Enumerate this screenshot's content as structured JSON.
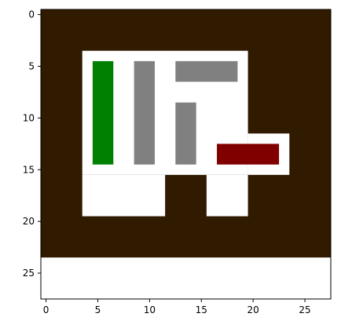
{
  "chart_data": {
    "type": "heatmap",
    "title": "",
    "xlabel": "",
    "ylabel": "",
    "xlim": [
      -0.5,
      27.5
    ],
    "ylim": [
      27.5,
      -0.5
    ],
    "x_ticks": [
      "0",
      "5",
      "10",
      "15",
      "20",
      "25"
    ],
    "y_ticks": [
      "0",
      "5",
      "10",
      "15",
      "20",
      "25"
    ],
    "grid_size": [
      28,
      28
    ],
    "colors": {
      "wall": "#301a00",
      "floor": "#ffffff",
      "void": "#ffffff",
      "green_object": "#008000",
      "gray_object": "#808080",
      "red_object": "#800000"
    },
    "regions": [
      {
        "label": "wall",
        "color_key": "wall",
        "col0": 0,
        "col1": 27,
        "row0": 0,
        "row1": 23
      },
      {
        "label": "floor",
        "color_key": "floor",
        "col0": 4,
        "col1": 19,
        "row0": 4,
        "row1": 15
      },
      {
        "label": "floor",
        "color_key": "floor",
        "col0": 4,
        "col1": 11,
        "row0": 16,
        "row1": 19
      },
      {
        "label": "floor",
        "color_key": "floor",
        "col0": 16,
        "col1": 19,
        "row0": 16,
        "row1": 19
      },
      {
        "label": "floor",
        "color_key": "floor",
        "col0": 20,
        "col1": 23,
        "row0": 12,
        "row1": 15
      },
      {
        "label": "void",
        "color_key": "void",
        "col0": 0,
        "col1": 27,
        "row0": 24,
        "row1": 27
      },
      {
        "label": "green-object",
        "color_key": "green_object",
        "col0": 5,
        "col1": 6,
        "row0": 5,
        "row1": 14
      },
      {
        "label": "gray-object",
        "color_key": "gray_object",
        "col0": 9,
        "col1": 10,
        "row0": 5,
        "row1": 14
      },
      {
        "label": "gray-object",
        "color_key": "gray_object",
        "col0": 13,
        "col1": 18,
        "row0": 5,
        "row1": 6
      },
      {
        "label": "gray-object",
        "color_key": "gray_object",
        "col0": 13,
        "col1": 14,
        "row0": 9,
        "row1": 14
      },
      {
        "label": "red-object",
        "color_key": "red_object",
        "col0": 17,
        "col1": 22,
        "row0": 13,
        "row1": 14
      }
    ]
  }
}
